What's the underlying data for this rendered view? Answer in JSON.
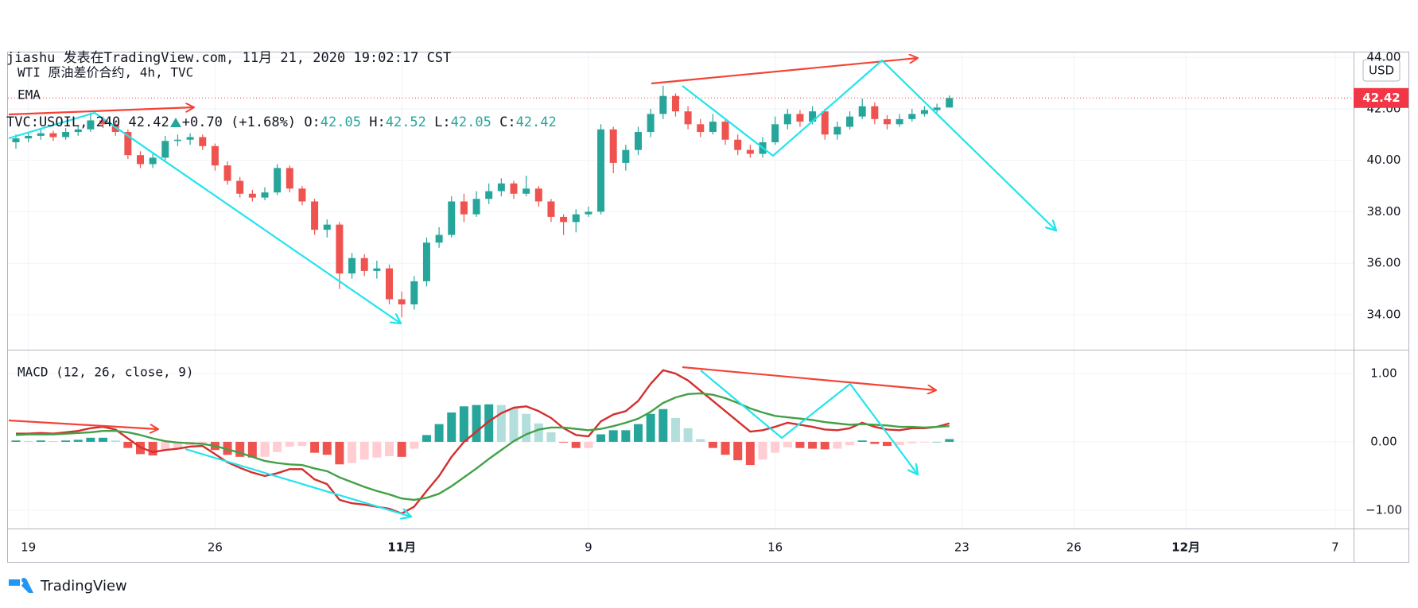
{
  "header": {
    "author_line": "jiashu 发表在TradingView.com, 11月 21, 2020 19:02:17 CST",
    "symbol": "TVC:USOIL, 240",
    "last": "42.42",
    "change": "+0.70",
    "change_pct": "(+1.68%)",
    "ohlc": [
      {
        "label": "O:",
        "value": "42.05"
      },
      {
        "label": "H:",
        "value": "42.52"
      },
      {
        "label": "L:",
        "value": "42.05"
      },
      {
        "label": "C:",
        "value": "42.42"
      }
    ]
  },
  "footer": {
    "brand": "TradingView"
  },
  "chart_data": [
    {
      "type": "candlestick",
      "title": "WTI 原油差价合约, 4h, TVC",
      "indicator": "EMA",
      "unit": "USD",
      "categories": [
        null,
        "19",
        null,
        null,
        null,
        null,
        null,
        null,
        null,
        null,
        null,
        null,
        null,
        null,
        null,
        null,
        "26",
        null,
        null,
        null,
        null,
        null,
        null,
        null,
        null,
        null,
        null,
        null,
        null,
        null,
        null,
        "11月",
        null,
        null,
        null,
        null,
        null,
        null,
        null,
        null,
        null,
        null,
        null,
        null,
        null,
        null,
        "9",
        null,
        null,
        null,
        null,
        null,
        null,
        null,
        null,
        null,
        null,
        null,
        null,
        null,
        null,
        "16",
        null,
        null,
        null,
        null,
        null,
        null,
        null,
        null,
        null,
        null,
        null,
        null,
        null,
        null,
        "23",
        null,
        null,
        null,
        null,
        null,
        null,
        null,
        null,
        "26",
        null,
        null,
        null,
        null,
        null,
        null,
        null,
        null,
        "12月",
        null,
        null,
        null,
        null,
        null,
        null,
        null,
        null,
        null,
        null,
        null,
        "7"
      ],
      "open": [
        40.7,
        40.85,
        40.95,
        41.05,
        40.9,
        41.1,
        41.2,
        41.55,
        41.4,
        41.1,
        40.2,
        39.85,
        40.1,
        40.75,
        40.8,
        40.9,
        40.55,
        39.8,
        39.2,
        38.7,
        38.55,
        38.75,
        39.7,
        38.9,
        38.4,
        37.3,
        37.5,
        35.6,
        36.2,
        35.7,
        35.8,
        34.6,
        34.4,
        35.3,
        36.8,
        37.1,
        38.4,
        37.9,
        38.5,
        38.8,
        39.1,
        38.7,
        38.9,
        38.4,
        37.8,
        37.6,
        37.9,
        38.0,
        41.2,
        39.9,
        40.4,
        41.1,
        41.8,
        42.5,
        41.9,
        41.4,
        41.1,
        41.5,
        40.8,
        40.4,
        40.25,
        40.7,
        41.4,
        41.8,
        41.5,
        41.9,
        41.0,
        41.3,
        41.7,
        42.1,
        41.6,
        41.4,
        41.6,
        41.8,
        41.95,
        42.05,
        null,
        null,
        null,
        null,
        null,
        null,
        null,
        null,
        null,
        null,
        null,
        null,
        null,
        null,
        null,
        null,
        null,
        null,
        null,
        null,
        null,
        null,
        null,
        null,
        null,
        null,
        null,
        null,
        null,
        null,
        null
      ],
      "high": [
        41.0,
        41.1,
        41.2,
        41.15,
        41.25,
        41.35,
        41.85,
        41.7,
        41.5,
        41.2,
        40.35,
        40.25,
        40.95,
        41.0,
        41.05,
        41.0,
        40.65,
        39.95,
        39.35,
        38.85,
        38.95,
        39.85,
        39.8,
        39.0,
        38.5,
        37.7,
        37.6,
        36.4,
        36.35,
        36.1,
        35.95,
        34.9,
        35.5,
        37.0,
        37.4,
        38.6,
        38.7,
        38.8,
        39.1,
        39.3,
        39.2,
        39.4,
        39.0,
        38.5,
        37.9,
        38.1,
        38.2,
        41.4,
        41.3,
        40.6,
        41.3,
        42.0,
        42.9,
        42.6,
        42.1,
        41.6,
        41.8,
        41.6,
        41.0,
        40.6,
        40.9,
        41.7,
        42.0,
        41.95,
        42.1,
        42.0,
        41.5,
        41.9,
        42.4,
        42.25,
        41.75,
        41.8,
        42.0,
        42.1,
        42.2,
        42.52,
        null,
        null,
        null,
        null,
        null,
        null,
        null,
        null,
        null,
        null,
        null,
        null,
        null,
        null,
        null,
        null,
        null,
        null,
        null,
        null,
        null,
        null,
        null,
        null,
        null,
        null,
        null,
        null,
        null,
        null,
        null
      ],
      "low": [
        40.45,
        40.7,
        40.8,
        40.75,
        40.8,
        40.95,
        41.1,
        41.25,
        40.95,
        40.05,
        39.7,
        39.7,
        40.0,
        40.55,
        40.6,
        40.4,
        39.6,
        39.05,
        38.55,
        38.4,
        38.45,
        38.65,
        38.75,
        38.25,
        37.1,
        37.0,
        35.0,
        35.4,
        35.5,
        35.4,
        34.4,
        33.9,
        34.2,
        35.1,
        36.6,
        37.0,
        37.6,
        37.8,
        38.3,
        38.6,
        38.5,
        38.6,
        38.2,
        37.6,
        37.1,
        37.2,
        37.8,
        37.9,
        39.5,
        39.6,
        40.2,
        40.9,
        41.6,
        41.7,
        41.2,
        40.9,
        41.0,
        40.6,
        40.2,
        40.1,
        40.1,
        40.6,
        41.2,
        41.3,
        41.4,
        40.8,
        40.8,
        41.2,
        41.6,
        41.4,
        41.2,
        41.3,
        41.5,
        41.7,
        41.85,
        42.05,
        null,
        null,
        null,
        null,
        null,
        null,
        null,
        null,
        null,
        null,
        null,
        null,
        null,
        null,
        null,
        null,
        null,
        null,
        null,
        null,
        null,
        null,
        null,
        null,
        null,
        null,
        null,
        null,
        null,
        null,
        null
      ],
      "close": [
        40.85,
        40.95,
        41.05,
        40.9,
        41.1,
        41.2,
        41.55,
        41.4,
        41.1,
        40.2,
        39.85,
        40.1,
        40.75,
        40.8,
        40.9,
        40.55,
        39.8,
        39.2,
        38.7,
        38.55,
        38.75,
        39.7,
        38.9,
        38.4,
        37.3,
        37.5,
        35.6,
        36.2,
        35.7,
        35.8,
        34.6,
        34.4,
        35.3,
        36.8,
        37.1,
        38.4,
        37.9,
        38.5,
        38.8,
        39.1,
        38.7,
        38.9,
        38.4,
        37.8,
        37.6,
        37.9,
        38.0,
        41.2,
        39.9,
        40.4,
        41.1,
        41.8,
        42.5,
        41.9,
        41.4,
        41.1,
        41.5,
        40.8,
        40.4,
        40.25,
        40.7,
        41.4,
        41.8,
        41.5,
        41.9,
        41.0,
        41.3,
        41.7,
        42.1,
        41.6,
        41.4,
        41.6,
        41.8,
        41.95,
        42.05,
        42.42,
        null,
        null,
        null,
        null,
        null,
        null,
        null,
        null,
        null,
        null,
        null,
        null,
        null,
        null,
        null,
        null,
        null,
        null,
        null,
        null,
        null,
        null,
        null,
        null,
        null,
        null,
        null,
        null,
        null,
        null,
        null
      ],
      "up_color": "#26a69a",
      "down_color": "#ef5350",
      "last_price_color": "#f23645",
      "ylim": [
        32.64,
        44.22
      ],
      "yticks": [
        {
          "value": 34,
          "label": "34.00"
        },
        {
          "value": 36,
          "label": "36.00"
        },
        {
          "value": 38,
          "label": "38.00"
        },
        {
          "value": 40,
          "label": "40.00"
        },
        {
          "value": 42,
          "label": "42.00"
        },
        {
          "value": 44,
          "label": "44.00"
        }
      ],
      "grid": true
    },
    {
      "type": "macd",
      "title": "MACD (12, 26, close, 9)",
      "series": [
        {
          "color": "#d32f2f",
          "values": [
            0.12,
            0.12,
            0.13,
            0.12,
            0.14,
            0.16,
            0.2,
            0.22,
            0.18,
            0.05,
            -0.08,
            -0.15,
            -0.12,
            -0.1,
            -0.07,
            -0.06,
            -0.18,
            -0.3,
            -0.38,
            -0.45,
            -0.5,
            -0.46,
            -0.4,
            -0.4,
            -0.55,
            -0.62,
            -0.85,
            -0.9,
            -0.92,
            -0.95,
            -0.98,
            -1.05,
            -0.95,
            -0.72,
            -0.5,
            -0.22,
            0.0,
            0.15,
            0.3,
            0.42,
            0.5,
            0.52,
            0.45,
            0.35,
            0.2,
            0.1,
            0.08,
            0.3,
            0.4,
            0.45,
            0.6,
            0.85,
            1.05,
            1.0,
            0.9,
            0.75,
            0.6,
            0.45,
            0.3,
            0.15,
            0.17,
            0.22,
            0.28,
            0.25,
            0.22,
            0.18,
            0.17,
            0.2,
            0.28,
            0.22,
            0.18,
            0.17,
            0.2,
            0.2,
            0.22,
            0.27,
            null,
            null,
            null,
            null,
            null,
            null,
            null,
            null,
            null,
            null,
            null,
            null,
            null,
            null,
            null,
            null,
            null,
            null,
            null,
            null,
            null,
            null,
            null,
            null,
            null,
            null,
            null,
            null,
            null,
            null,
            null
          ]
        },
        {
          "color": "#43a047",
          "values": [
            0.1,
            0.11,
            0.11,
            0.11,
            0.12,
            0.13,
            0.14,
            0.16,
            0.16,
            0.14,
            0.1,
            0.05,
            0.01,
            -0.01,
            -0.02,
            -0.03,
            -0.06,
            -0.11,
            -0.16,
            -0.22,
            -0.28,
            -0.31,
            -0.33,
            -0.34,
            -0.39,
            -0.43,
            -0.52,
            -0.59,
            -0.66,
            -0.72,
            -0.77,
            -0.83,
            -0.85,
            -0.82,
            -0.76,
            -0.65,
            -0.52,
            -0.39,
            -0.25,
            -0.12,
            0.01,
            0.11,
            0.18,
            0.21,
            0.21,
            0.19,
            0.17,
            0.19,
            0.23,
            0.28,
            0.34,
            0.44,
            0.57,
            0.65,
            0.7,
            0.71,
            0.69,
            0.64,
            0.57,
            0.49,
            0.43,
            0.38,
            0.36,
            0.34,
            0.32,
            0.29,
            0.27,
            0.25,
            0.26,
            0.25,
            0.24,
            0.22,
            0.22,
            0.21,
            0.22,
            0.23,
            null,
            null,
            null,
            null,
            null,
            null,
            null,
            null,
            null,
            null,
            null,
            null,
            null,
            null,
            null,
            null,
            null,
            null,
            null,
            null,
            null,
            null,
            null,
            null,
            null,
            null,
            null,
            null,
            null,
            null,
            null
          ]
        }
      ],
      "histogram": {
        "colors": [
          "#26a69a",
          "#b2dfdb",
          "#ef5350",
          "#ffcdd2"
        ],
        "values": [
          0.02,
          0.01,
          0.02,
          0.01,
          0.02,
          0.03,
          0.06,
          0.06,
          0.02,
          -0.09,
          -0.18,
          -0.2,
          -0.13,
          -0.09,
          -0.05,
          -0.03,
          -0.12,
          -0.19,
          -0.22,
          -0.23,
          -0.22,
          -0.15,
          -0.07,
          -0.06,
          -0.16,
          -0.19,
          -0.33,
          -0.31,
          -0.26,
          -0.23,
          -0.21,
          -0.22,
          -0.1,
          0.1,
          0.26,
          0.43,
          0.52,
          0.54,
          0.55,
          0.54,
          0.49,
          0.41,
          0.27,
          0.14,
          -0.01,
          -0.09,
          -0.09,
          0.11,
          0.17,
          0.17,
          0.26,
          0.41,
          0.48,
          0.35,
          0.2,
          0.04,
          -0.09,
          -0.19,
          -0.27,
          -0.34,
          -0.26,
          -0.16,
          -0.08,
          -0.09,
          -0.1,
          -0.11,
          -0.1,
          -0.05,
          0.02,
          -0.03,
          -0.06,
          -0.05,
          -0.02,
          -0.01,
          0.0,
          0.04,
          null,
          null,
          null,
          null,
          null,
          null,
          null,
          null,
          null,
          null,
          null,
          null,
          null,
          null,
          null,
          null,
          null,
          null,
          null,
          null,
          null,
          null,
          null,
          null,
          null,
          null,
          null,
          null,
          null,
          null,
          null
        ]
      },
      "ylim": [
        -1.27,
        1.35
      ],
      "yticks": [
        {
          "value": 1,
          "label": "1.00"
        },
        {
          "value": 0,
          "label": "0.00"
        },
        {
          "value": -1,
          "label": "−1.00"
        }
      ],
      "grid": true
    }
  ]
}
